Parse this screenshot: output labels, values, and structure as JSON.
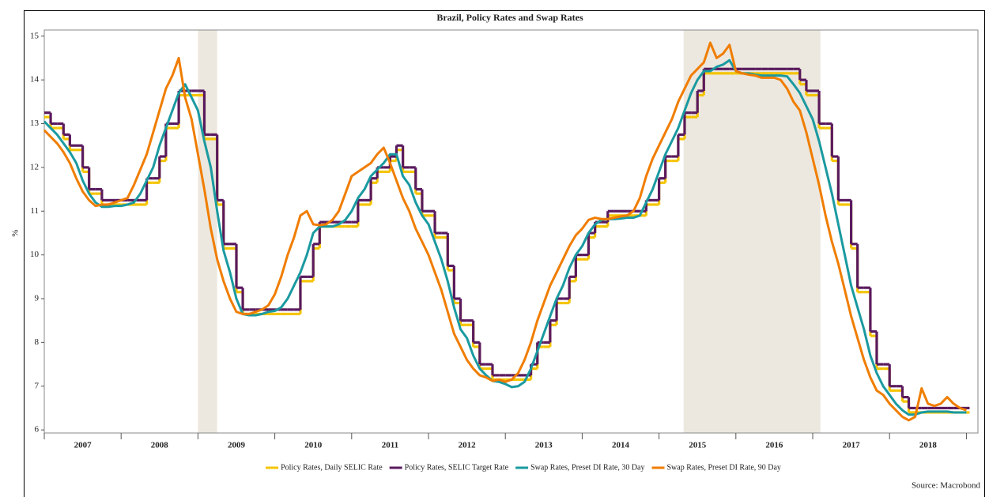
{
  "chart_data": {
    "type": "line",
    "title": "Brazil, Policy Rates and Swap Rates",
    "y_label": "%",
    "source": "Source: Macrobond",
    "xlim": [
      2007,
      2019.15
    ],
    "ylim": [
      5.93,
      15.14
    ],
    "yticks": [
      6,
      7,
      8,
      9,
      10,
      11,
      12,
      13,
      14,
      15
    ],
    "xticks": [
      {
        "value": 2007.5,
        "label": "2007"
      },
      {
        "value": 2008.5,
        "label": "2008"
      },
      {
        "value": 2009.5,
        "label": "2009"
      },
      {
        "value": 2010.5,
        "label": "2010"
      },
      {
        "value": 2011.5,
        "label": "2011"
      },
      {
        "value": 2012.5,
        "label": "2012"
      },
      {
        "value": 2013.5,
        "label": "2013"
      },
      {
        "value": 2014.5,
        "label": "2014"
      },
      {
        "value": 2015.5,
        "label": "2015"
      },
      {
        "value": 2016.5,
        "label": "2016"
      },
      {
        "value": 2017.5,
        "label": "2017"
      },
      {
        "value": 2018.5,
        "label": "2018"
      }
    ],
    "year_boundaries": [
      2007,
      2008,
      2009,
      2010,
      2011,
      2012,
      2013,
      2014,
      2015,
      2016,
      2017,
      2018,
      2019
    ],
    "shaded_regions": [
      [
        2009.0,
        2009.25
      ],
      [
        2015.32,
        2017.1
      ]
    ],
    "shade_color": "#ece8df",
    "legend": "bottom",
    "x": [
      2007,
      2007.083,
      2007.167,
      2007.25,
      2007.333,
      2007.417,
      2007.5,
      2007.583,
      2007.667,
      2007.75,
      2007.833,
      2007.917,
      2008,
      2008.083,
      2008.167,
      2008.25,
      2008.333,
      2008.417,
      2008.5,
      2008.583,
      2008.667,
      2008.75,
      2008.833,
      2008.917,
      2009,
      2009.083,
      2009.167,
      2009.25,
      2009.333,
      2009.417,
      2009.5,
      2009.583,
      2009.667,
      2009.75,
      2009.833,
      2009.917,
      2010,
      2010.083,
      2010.167,
      2010.25,
      2010.333,
      2010.417,
      2010.5,
      2010.583,
      2010.667,
      2010.75,
      2010.833,
      2010.917,
      2011,
      2011.083,
      2011.167,
      2011.25,
      2011.333,
      2011.417,
      2011.5,
      2011.583,
      2011.667,
      2011.75,
      2011.833,
      2011.917,
      2012,
      2012.083,
      2012.167,
      2012.25,
      2012.333,
      2012.417,
      2012.5,
      2012.583,
      2012.667,
      2012.75,
      2012.833,
      2012.917,
      2013,
      2013.083,
      2013.167,
      2013.25,
      2013.333,
      2013.417,
      2013.5,
      2013.583,
      2013.667,
      2013.75,
      2013.833,
      2013.917,
      2014,
      2014.083,
      2014.167,
      2014.25,
      2014.333,
      2014.417,
      2014.5,
      2014.583,
      2014.667,
      2014.75,
      2014.833,
      2014.917,
      2015,
      2015.083,
      2015.167,
      2015.25,
      2015.333,
      2015.417,
      2015.5,
      2015.583,
      2015.667,
      2015.75,
      2015.833,
      2015.917,
      2016,
      2016.083,
      2016.167,
      2016.25,
      2016.333,
      2016.417,
      2016.5,
      2016.583,
      2016.667,
      2016.75,
      2016.833,
      2016.917,
      2017,
      2017.083,
      2017.167,
      2017.25,
      2017.333,
      2017.417,
      2017.5,
      2017.583,
      2017.667,
      2017.75,
      2017.833,
      2017.917,
      2018,
      2018.083,
      2018.167,
      2018.25,
      2018.333,
      2018.417,
      2018.5,
      2018.583,
      2018.667,
      2018.75,
      2018.833,
      2018.917,
      2019
    ],
    "series": [
      {
        "name": "Policy Rates, Daily SELIC Rate",
        "color": "#f5c400",
        "step": true,
        "values": [
          13.15,
          12.9,
          12.9,
          12.65,
          12.4,
          12.4,
          11.9,
          11.4,
          11.4,
          11.15,
          11.15,
          11.15,
          11.15,
          11.15,
          11.15,
          11.15,
          11.65,
          11.65,
          12.15,
          12.9,
          12.9,
          13.65,
          13.65,
          13.65,
          13.65,
          12.65,
          12.65,
          11.15,
          10.15,
          10.15,
          9.15,
          8.65,
          8.65,
          8.65,
          8.65,
          8.65,
          8.65,
          8.65,
          8.65,
          8.65,
          9.4,
          9.4,
          10.15,
          10.65,
          10.65,
          10.65,
          10.65,
          10.65,
          10.65,
          11.15,
          11.15,
          11.65,
          11.9,
          11.9,
          12.15,
          12.4,
          11.9,
          11.9,
          11.4,
          10.9,
          10.9,
          10.4,
          10.4,
          9.65,
          8.9,
          8.4,
          8.4,
          7.9,
          7.4,
          7.4,
          7.15,
          7.15,
          7.15,
          7.15,
          7.15,
          7.15,
          7.4,
          7.9,
          7.9,
          8.4,
          8.9,
          8.9,
          9.4,
          9.9,
          9.9,
          10.4,
          10.65,
          10.65,
          10.9,
          10.9,
          10.9,
          10.9,
          10.9,
          10.9,
          11.15,
          11.15,
          11.65,
          12.15,
          12.15,
          12.65,
          13.15,
          13.15,
          13.65,
          14.15,
          14.15,
          14.15,
          14.15,
          14.15,
          14.15,
          14.15,
          14.15,
          14.15,
          14.15,
          14.15,
          14.15,
          14.15,
          14.15,
          14.15,
          13.9,
          13.65,
          13.65,
          12.9,
          12.9,
          12.15,
          11.15,
          11.15,
          10.15,
          9.15,
          9.15,
          8.15,
          7.4,
          7.4,
          6.9,
          6.9,
          6.65,
          6.4,
          6.4,
          6.4,
          6.4,
          6.4,
          6.4,
          6.4,
          6.4,
          6.4,
          6.4
        ]
      },
      {
        "name": "Policy Rates, SELIC Target Rate",
        "color": "#5a1a5e",
        "step": true,
        "values": [
          13.25,
          13,
          13,
          12.75,
          12.5,
          12.5,
          12,
          11.5,
          11.5,
          11.25,
          11.25,
          11.25,
          11.25,
          11.25,
          11.25,
          11.25,
          11.75,
          11.75,
          12.25,
          13,
          13,
          13.75,
          13.75,
          13.75,
          13.75,
          12.75,
          12.75,
          11.25,
          10.25,
          10.25,
          9.25,
          8.75,
          8.75,
          8.75,
          8.75,
          8.75,
          8.75,
          8.75,
          8.75,
          8.75,
          9.5,
          9.5,
          10.25,
          10.75,
          10.75,
          10.75,
          10.75,
          10.75,
          10.75,
          11.25,
          11.25,
          11.75,
          12,
          12,
          12.25,
          12.5,
          12,
          12,
          11.5,
          11,
          11,
          10.5,
          10.5,
          9.75,
          9,
          8.5,
          8.5,
          8,
          7.5,
          7.5,
          7.25,
          7.25,
          7.25,
          7.25,
          7.25,
          7.25,
          7.5,
          8,
          8,
          8.5,
          9,
          9,
          9.5,
          10,
          10,
          10.5,
          10.75,
          10.75,
          11,
          11,
          11,
          11,
          11,
          11,
          11.25,
          11.25,
          11.75,
          12.25,
          12.25,
          12.75,
          13.25,
          13.25,
          13.75,
          14.25,
          14.25,
          14.25,
          14.25,
          14.25,
          14.25,
          14.25,
          14.25,
          14.25,
          14.25,
          14.25,
          14.25,
          14.25,
          14.25,
          14.25,
          14,
          13.75,
          13.75,
          13,
          13,
          12.25,
          11.25,
          11.25,
          10.25,
          9.25,
          9.25,
          8.25,
          7.5,
          7.5,
          7,
          7,
          6.75,
          6.5,
          6.5,
          6.5,
          6.5,
          6.5,
          6.5,
          6.5,
          6.5,
          6.5,
          6.5
        ]
      },
      {
        "name": "Swap Rates, Preset DI Rate, 30 Day",
        "color": "#1a9aa0",
        "step": false,
        "values": [
          13.05,
          12.9,
          12.75,
          12.55,
          12.35,
          12.1,
          11.7,
          11.4,
          11.2,
          11.1,
          11.1,
          11.12,
          11.12,
          11.15,
          11.2,
          11.4,
          11.7,
          12.0,
          12.5,
          12.9,
          13.3,
          13.7,
          13.9,
          13.6,
          13.3,
          12.6,
          12.0,
          11.0,
          10.1,
          9.6,
          9.0,
          8.65,
          8.62,
          8.62,
          8.65,
          8.7,
          8.72,
          8.8,
          9.0,
          9.3,
          9.6,
          10.0,
          10.5,
          10.65,
          10.65,
          10.65,
          10.7,
          10.8,
          11.0,
          11.3,
          11.5,
          11.8,
          11.95,
          12.1,
          12.3,
          12.3,
          11.8,
          11.6,
          11.2,
          10.9,
          10.7,
          10.3,
          9.9,
          9.4,
          8.8,
          8.3,
          8.1,
          7.7,
          7.4,
          7.25,
          7.12,
          7.1,
          7.05,
          6.98,
          7.0,
          7.1,
          7.4,
          7.8,
          8.2,
          8.6,
          9.0,
          9.3,
          9.7,
          10.0,
          10.2,
          10.5,
          10.7,
          10.8,
          10.82,
          10.82,
          10.83,
          10.85,
          10.85,
          10.9,
          11.2,
          11.5,
          11.9,
          12.3,
          12.6,
          12.9,
          13.3,
          13.7,
          14.0,
          14.2,
          14.2,
          14.3,
          14.35,
          14.45,
          14.2,
          14.15,
          14.15,
          14.12,
          14.1,
          14.1,
          14.1,
          14.1,
          14.08,
          13.9,
          13.7,
          13.4,
          13.1,
          12.6,
          12.0,
          11.4,
          10.7,
          10.0,
          9.3,
          8.8,
          8.3,
          7.7,
          7.3,
          7.0,
          6.8,
          6.6,
          6.45,
          6.35,
          6.35,
          6.4,
          6.42,
          6.42,
          6.42,
          6.42,
          6.4,
          6.4,
          6.4
        ]
      },
      {
        "name": "Swap Rates, Preset DI Rate, 90 Day",
        "color": "#f07d00",
        "step": false,
        "values": [
          12.85,
          12.7,
          12.55,
          12.35,
          12.1,
          11.75,
          11.45,
          11.25,
          11.12,
          11.15,
          11.15,
          11.2,
          11.25,
          11.3,
          11.6,
          11.95,
          12.3,
          12.8,
          13.3,
          13.8,
          14.1,
          14.5,
          13.6,
          13.1,
          12.3,
          11.5,
          10.6,
          9.9,
          9.4,
          9.0,
          8.7,
          8.65,
          8.65,
          8.7,
          8.75,
          8.85,
          9.1,
          9.5,
          10.0,
          10.4,
          10.9,
          11.0,
          10.7,
          10.68,
          10.7,
          10.8,
          11.0,
          11.4,
          11.8,
          11.9,
          12.0,
          12.1,
          12.3,
          12.45,
          12.1,
          11.7,
          11.3,
          11.0,
          10.6,
          10.3,
          10.0,
          9.6,
          9.2,
          8.7,
          8.2,
          7.9,
          7.6,
          7.4,
          7.25,
          7.2,
          7.12,
          7.15,
          7.1,
          7.15,
          7.3,
          7.6,
          8.0,
          8.5,
          8.9,
          9.3,
          9.6,
          9.9,
          10.2,
          10.45,
          10.6,
          10.8,
          10.85,
          10.82,
          10.82,
          10.85,
          10.88,
          10.9,
          11.0,
          11.3,
          11.8,
          12.2,
          12.5,
          12.8,
          13.1,
          13.5,
          13.8,
          14.1,
          14.25,
          14.4,
          14.85,
          14.5,
          14.6,
          14.8,
          14.2,
          14.15,
          14.12,
          14.1,
          14.05,
          14.05,
          14.05,
          14.0,
          13.8,
          13.5,
          13.3,
          12.8,
          12.2,
          11.6,
          10.9,
          10.3,
          9.8,
          9.2,
          8.6,
          8.1,
          7.6,
          7.2,
          6.9,
          6.8,
          6.6,
          6.45,
          6.3,
          6.22,
          6.3,
          6.95,
          6.6,
          6.55,
          6.6,
          6.75,
          6.6,
          6.5,
          6.45
        ]
      }
    ]
  }
}
